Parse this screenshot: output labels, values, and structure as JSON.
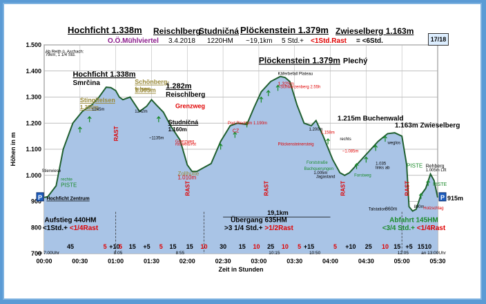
{
  "header": {
    "t1": "Hochficht 1.338m",
    "t2": "Reischlberg",
    "t3": "Studničná",
    "t4": "Plöckenstein 1.379m",
    "t5": "Zwieselberg 1.163m",
    "s1": "O.Ö.Mühlviertel",
    "s2": "3.4.2018",
    "s3": "1220HM",
    "s4": "~19,1km",
    "s5": "5 Std.+",
    "s6": "<1Std.Rast",
    "s7": "= <6Std.",
    "page": "17/18"
  },
  "colors": {
    "fill": "#a9c4e6",
    "line": "#1f5f2f",
    "red": "#e00000",
    "green": "#1a8a2a",
    "tan": "#9a8a3a"
  },
  "chart_data": {
    "type": "area",
    "title": "",
    "ylabel": "Höhen in m",
    "xlabel": "Zeit in Stunden",
    "ylim": [
      700,
      1500
    ],
    "xlim": [
      0,
      330
    ],
    "y_ticks": [
      "700",
      "800",
      "900",
      "1.000",
      "1.100",
      "1.200",
      "1.300",
      "1.400",
      "1.500"
    ],
    "y_tick_values": [
      700,
      800,
      900,
      1000,
      1100,
      1200,
      1300,
      1400,
      1500
    ],
    "x_ticks": [
      "00:00",
      "00:30",
      "01:00",
      "01:30",
      "02:00",
      "02:30",
      "03:00",
      "03:30",
      "04:00",
      "04:30",
      "05:00",
      "05:30"
    ],
    "x_tick_values": [
      0,
      30,
      60,
      90,
      120,
      150,
      180,
      210,
      240,
      270,
      300,
      330
    ],
    "x_minutes": [
      0,
      3,
      10,
      16,
      24,
      32,
      40,
      46,
      52,
      56,
      60,
      63,
      66,
      72,
      80,
      86,
      90,
      94,
      100,
      106,
      114,
      120,
      124,
      128,
      134,
      140,
      148,
      156,
      162,
      170,
      176,
      182,
      190,
      198,
      202,
      206,
      212,
      218,
      224,
      228,
      234,
      238,
      242,
      248,
      252,
      256,
      260,
      266,
      274,
      280,
      288,
      294,
      300,
      304,
      306,
      309,
      312,
      316,
      320,
      324,
      327,
      330
    ],
    "elevation": [
      915,
      918,
      960,
      1100,
      1200,
      1245,
      1270,
      1300,
      1338,
      1336,
      1325,
      1300,
      1290,
      1300,
      1245,
      1265,
      1290,
      1270,
      1242,
      1190,
      1135,
      1040,
      1015,
      1015,
      1030,
      1045,
      1130,
      1190,
      1200,
      1195,
      1260,
      1320,
      1360,
      1379,
      1375,
      1360,
      1270,
      1200,
      1190,
      1210,
      1150,
      1105,
      1060,
      1010,
      1000,
      1010,
      1030,
      1060,
      1100,
      1130,
      1160,
      1163,
      1150,
      1040,
      880,
      863,
      870,
      925,
      950,
      1005,
      980,
      915
    ],
    "duration_labels": [
      {
        "t": "45",
        "red": false
      },
      {
        "t": "5",
        "red": true
      },
      {
        "t": "+10",
        "red": false
      },
      {
        "t": "5",
        "red": true
      },
      {
        "t": "15",
        "red": false
      },
      {
        "t": "+5",
        "red": false
      },
      {
        "t": "5",
        "red": true
      },
      {
        "t": "15",
        "red": false
      },
      {
        "t": "15",
        "red": false
      },
      {
        "t": "10",
        "red": true
      },
      {
        "t": "30",
        "red": false
      },
      {
        "t": "15",
        "red": false
      },
      {
        "t": "10",
        "red": true
      },
      {
        "t": "25",
        "red": false
      },
      {
        "t": "10",
        "red": true
      },
      {
        "t": "5",
        "red": true
      },
      {
        "t": "+15",
        "red": false
      },
      {
        "t": "5",
        "red": true
      },
      {
        "t": "+10",
        "red": false
      },
      {
        "t": "25",
        "red": false
      },
      {
        "t": "10",
        "red": true
      },
      {
        "t": "15",
        "red": false
      },
      {
        "t": "+5",
        "red": false
      },
      {
        "t": "15",
        "red": false
      },
      {
        "t": "10",
        "red": false
      }
    ],
    "clock_labels": [
      "ab 7:00Uhr",
      "8:05",
      "8:55",
      "10:15",
      "10:50",
      "12:05",
      "an 13:00Uhr"
    ],
    "peaks": [
      {
        "name": "Hochficht 1.338m",
        "sub": "Smrčina"
      },
      {
        "name": "Stinglfelsen",
        "sub": "1.260m"
      },
      {
        "name": "Schönberg-",
        "sub": "felsen"
      },
      {
        "name": "1.305m"
      },
      {
        "name": "1.282m",
        "sub": "Reischlberg"
      },
      {
        "name": "Studničná",
        "sub": "1.160m"
      },
      {
        "name": "Plöckenstein 1.379m",
        "sub": "Plechý"
      },
      {
        "name": "1.215m Buchenwald"
      },
      {
        "name": "1.163m Zwieselberg"
      }
    ],
    "annotations": {
      "a1": "Ab Reith ü. Aschach:",
      "a2": "79km, 1 1/4 Std.",
      "a3": "Stierwiese",
      "a4": "rechte",
      "a5": "PISTE",
      "a6": "Hochficht Zentrum",
      "a7": "1245m",
      "a8": "1242m",
      "a9": "~1135m",
      "a10": "Grenzweg",
      "a11": "Grenzweg",
      "a12": "rot/weiß/rot",
      "a13": "Zollhütte",
      "a14": "1.010m",
      "a15": "Käferbefall Plateau",
      "a16": "1.325m",
      "a17": "Schwarzenberg 2.55h",
      "a18": "Pod Plechým 1.190m",
      "a19": "CZ",
      "a20": "1.200m",
      "a21": "rechts",
      "a22": "1.158m",
      "a23": "Plöckensteinersteig",
      "a24": "~1.085m",
      "a25": "Forststraße",
      "a26": "Bachquerungen",
      "a27": "1.005m",
      "a28": "Jagastand",
      "a29": "Forstweg",
      "a30": "weglos",
      "a31": "1.035",
      "a32": "links ab",
      "a33": "PISTE",
      "a34": "Talstation",
      "a35": "860m",
      "a36": "890m",
      "a37": "Holzschlag",
      "a38": "Rehberg",
      "a39": "1.005m Lift",
      "a40": "PISTE",
      "a41": "915m",
      "a42": "P",
      "a43": "P",
      "rast": "RAST",
      "dist": "19,1km",
      "seg1a": "Aufstieg 440HM",
      "seg1b": "<1Std.+",
      "seg1c": "<1/4Rast",
      "seg2a": "Übergang 635HM",
      "seg2b": ">3 1/4 Std.+",
      "seg2c": ">1/2Rast",
      "seg3a": "Abfahrt 145HM",
      "seg3b": "<3/4 Std.+",
      "seg3c": "<1/4Rast"
    }
  }
}
